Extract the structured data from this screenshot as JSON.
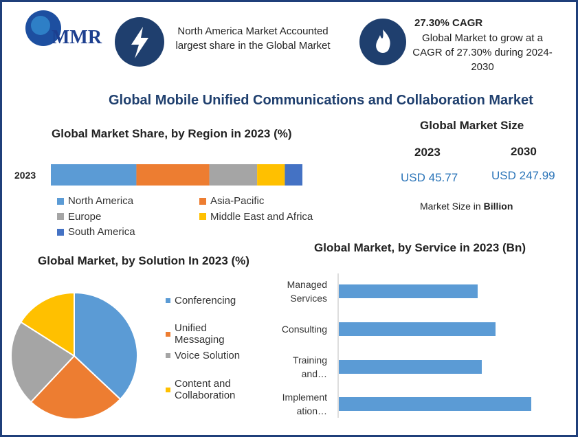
{
  "header": {
    "logo": "MMR",
    "highlight": "North America Market Accounted largest share in the Global Market",
    "cagr_title": "27.30% CAGR",
    "cagr_text": "Global Market to grow at a CAGR of 27.30% during 2024-2030"
  },
  "title": "Global Mobile Unified Communications and Collaboration Market",
  "market_size": {
    "title": "Global Market Size",
    "years": [
      "2023",
      "2030"
    ],
    "values": [
      "USD 45.77",
      "USD 247.99"
    ],
    "note": "Market Size in",
    "unit": "Billion"
  },
  "chart_data": [
    {
      "type": "stacked_bar",
      "title": "Global Market Share, by Region in 2023 (%)",
      "categories": [
        "2023"
      ],
      "series": [
        {
          "name": "North America",
          "color": "#5b9bd5",
          "values": [
            34
          ]
        },
        {
          "name": "Asia-Pacific",
          "color": "#ed7d31",
          "values": [
            29
          ]
        },
        {
          "name": "Europe",
          "color": "#a5a5a5",
          "values": [
            19
          ]
        },
        {
          "name": "Middle East and Africa",
          "color": "#ffc000",
          "values": [
            11
          ]
        },
        {
          "name": "South America",
          "color": "#4472c4",
          "values": [
            7
          ]
        }
      ]
    },
    {
      "type": "pie",
      "title": "Global Market, by Solution In 2023 (%)",
      "categories": [
        "Conferencing",
        "Unified Messaging",
        "Voice Solution",
        "Content and Collaboration"
      ],
      "values": [
        37,
        25,
        22,
        16
      ],
      "colors": [
        "#5b9bd5",
        "#ed7d31",
        "#a5a5a5",
        "#ffc000"
      ]
    },
    {
      "type": "bar",
      "title": "Global Market, by Service in 2023 (Bn)",
      "categories": [
        "Managed Services",
        "Consulting",
        "Training and…",
        "Implement ation…"
      ],
      "values": [
        10.1,
        11.4,
        10.4,
        14.0
      ],
      "color": "#5b9bd5"
    }
  ]
}
